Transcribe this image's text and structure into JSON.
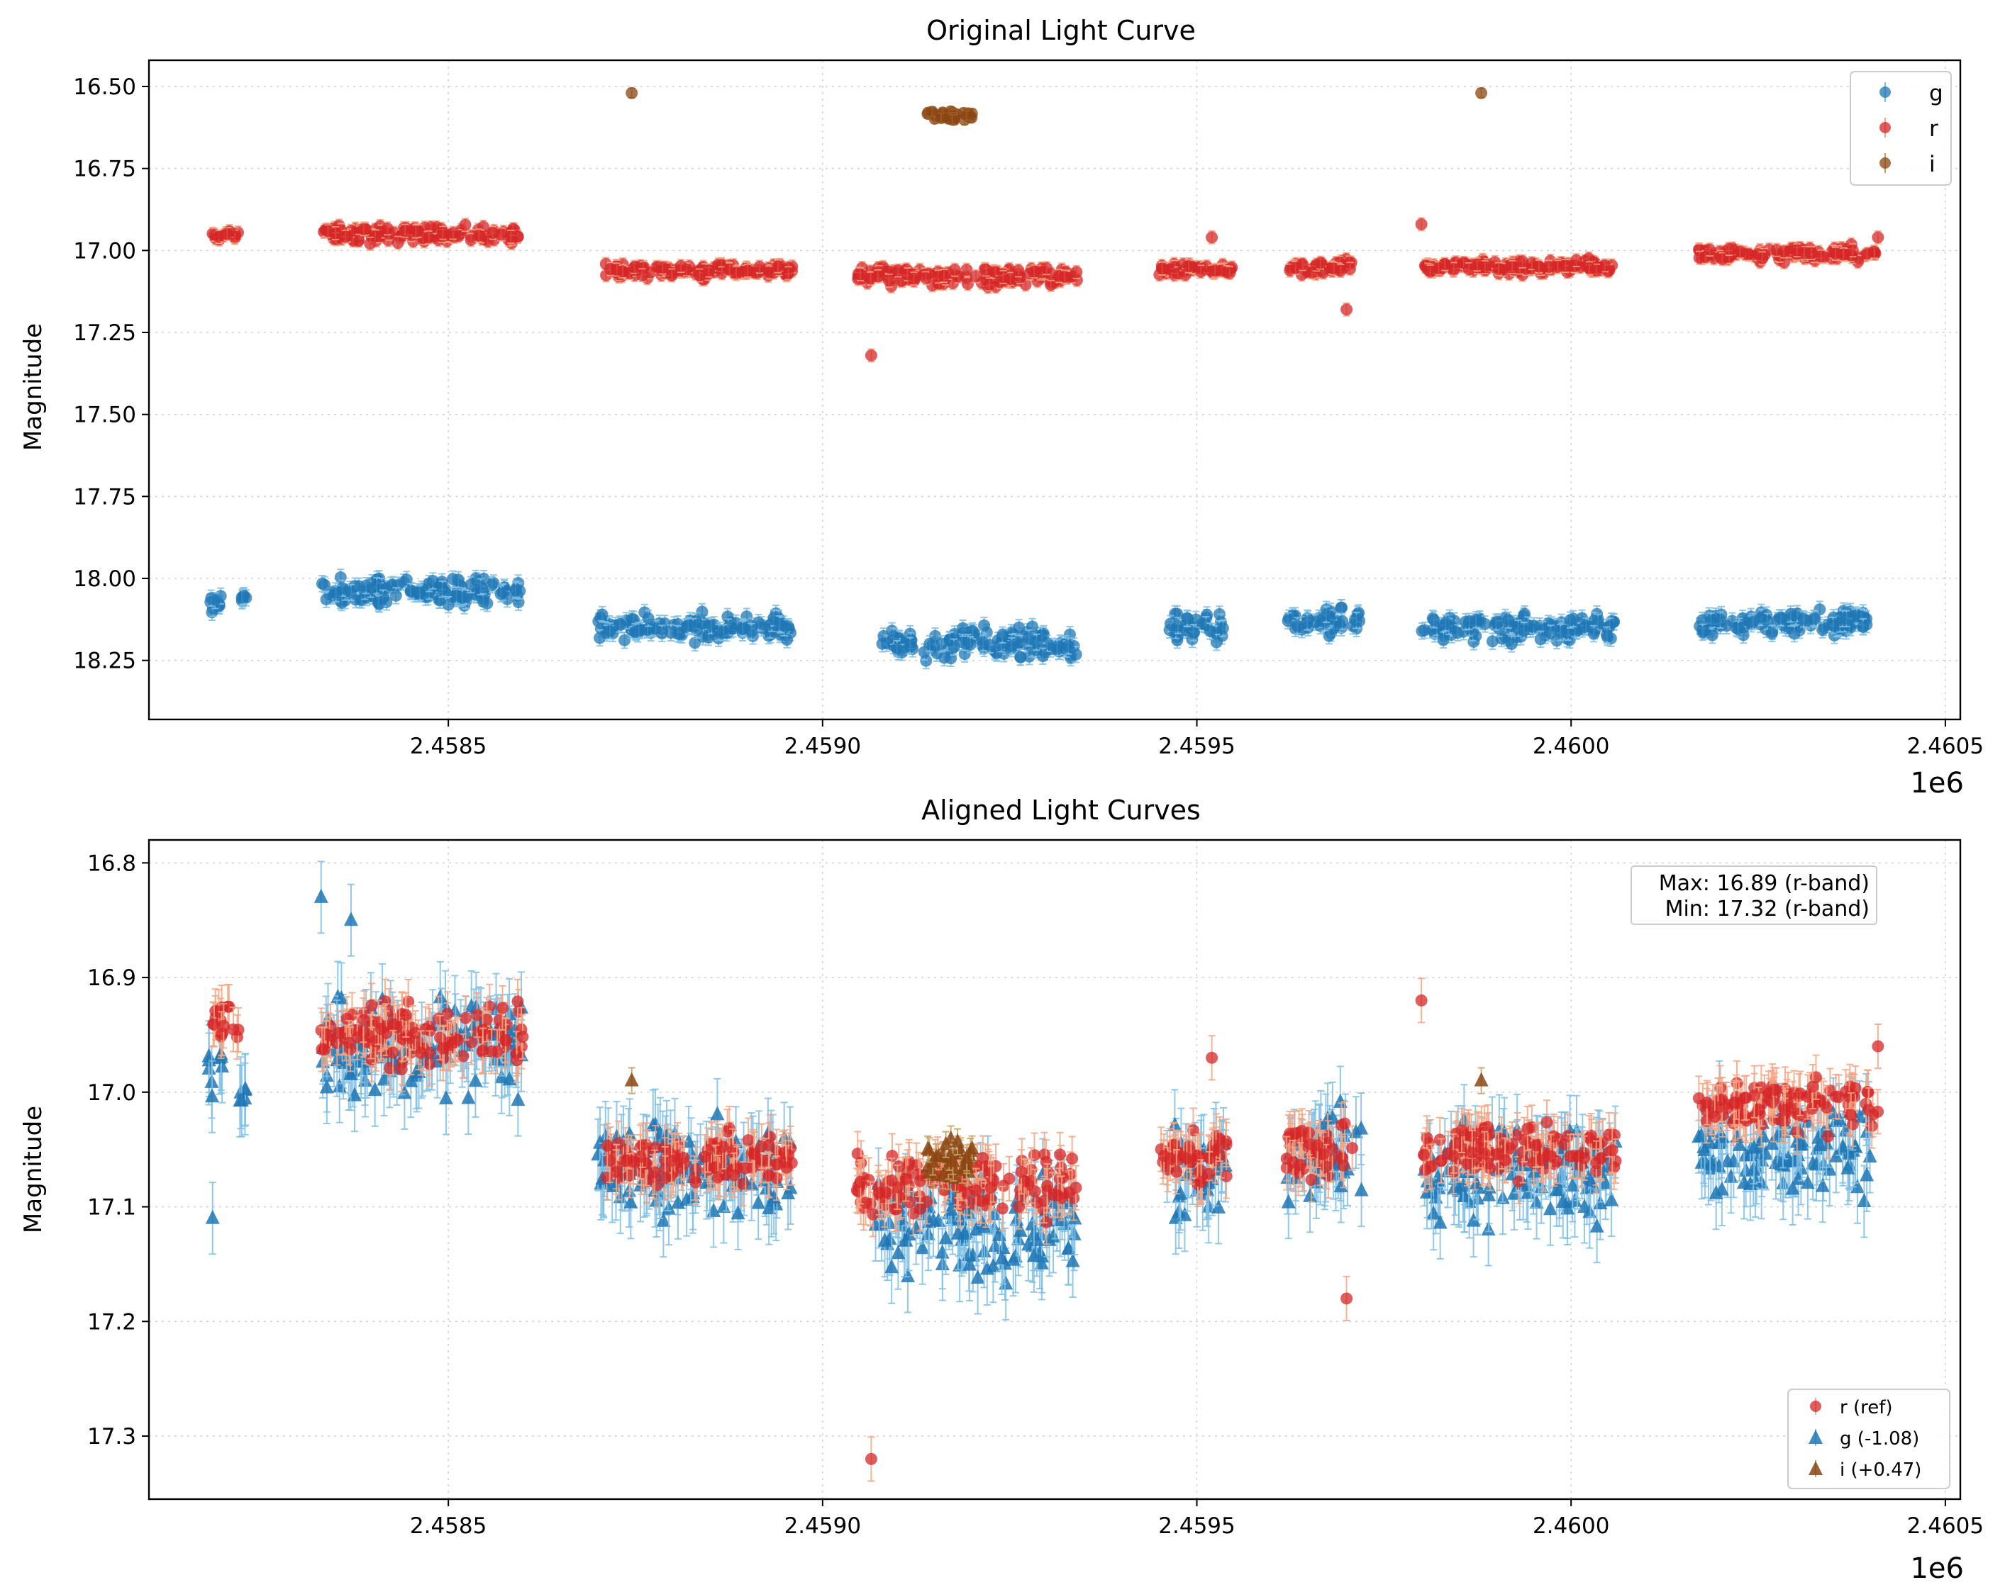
{
  "chart_data": [
    {
      "type": "scatter",
      "title": "Original Light Curve",
      "xlabel": "",
      "ylabel": "Magnitude",
      "x_offset_label": "1e6",
      "xlim": [
        2458100,
        2460520
      ],
      "ylim": [
        18.43,
        16.42
      ],
      "y_inverted": true,
      "x_ticks": [
        2458500,
        2459000,
        2459500,
        2460000,
        2460500
      ],
      "x_tick_labels": [
        "2.4585",
        "2.4590",
        "2.4595",
        "2.4600",
        "2.4605"
      ],
      "y_ticks": [
        16.5,
        16.75,
        17.0,
        17.25,
        17.5,
        17.75,
        18.0,
        18.25
      ],
      "y_tick_labels": [
        "16.50",
        "16.75",
        "17.00",
        "17.25",
        "17.50",
        "17.75",
        "18.00",
        "18.25"
      ],
      "grid": true,
      "legend_position": "top-right",
      "series": [
        {
          "name": "g",
          "color": "#1f77b4",
          "ecolor": "#7fbfe6",
          "marker": "circle",
          "err": 0.02,
          "segments": [
            [
              2458180,
              2458200,
              18.07,
              0.06
            ],
            [
              2458220,
              2458230,
              18.06,
              0.03
            ],
            [
              2458330,
              2458600,
              18.04,
              0.07
            ],
            [
              2458700,
              2458960,
              18.15,
              0.07
            ],
            [
              2459070,
              2459340,
              18.2,
              0.08
            ],
            [
              2459460,
              2459540,
              18.15,
              0.07
            ],
            [
              2459620,
              2459720,
              18.13,
              0.07
            ],
            [
              2459800,
              2460060,
              18.15,
              0.07
            ],
            [
              2460170,
              2460400,
              18.13,
              0.07
            ]
          ]
        },
        {
          "name": "r",
          "color": "#d62728",
          "ecolor": "#f4a582",
          "marker": "circle",
          "err": 0.015,
          "segments": [
            [
              2458185,
              2458220,
              16.95,
              0.03
            ],
            [
              2458330,
              2458600,
              16.95,
              0.05
            ],
            [
              2458710,
              2458960,
              17.06,
              0.04
            ],
            [
              2459045,
              2459340,
              17.08,
              0.05
            ],
            [
              2459450,
              2459550,
              17.06,
              0.04
            ],
            [
              2459620,
              2459710,
              17.05,
              0.04
            ],
            [
              2459800,
              2460060,
              17.05,
              0.04
            ],
            [
              2460170,
              2460410,
              17.01,
              0.04
            ]
          ],
          "outliers": [
            [
              2459065,
              17.32
            ],
            [
              2459700,
              17.18
            ],
            [
              2459800,
              16.92
            ],
            [
              2459520,
              16.96
            ],
            [
              2460410,
              16.96
            ]
          ]
        },
        {
          "name": "i",
          "color": "#8b4513",
          "ecolor": "#c8a060",
          "marker": "circle",
          "err": 0.01,
          "points": [
            [
              2458745,
              16.52
            ],
            [
              2459880,
              16.52
            ]
          ],
          "cluster": [
            2459140,
            2459200,
            16.59,
            0.03
          ]
        }
      ]
    },
    {
      "type": "scatter",
      "title": "Aligned Light Curves",
      "xlabel": "",
      "ylabel": "Magnitude",
      "x_offset_label": "1e6",
      "xlim": [
        2458100,
        2460520
      ],
      "ylim": [
        17.355,
        16.78
      ],
      "y_inverted": true,
      "x_ticks": [
        2458500,
        2459000,
        2459500,
        2460000,
        2460500
      ],
      "x_tick_labels": [
        "2.4585",
        "2.4590",
        "2.4595",
        "2.4600",
        "2.4605"
      ],
      "y_ticks": [
        16.8,
        16.9,
        17.0,
        17.1,
        17.2,
        17.3
      ],
      "y_tick_labels": [
        "16.8",
        "16.9",
        "17.0",
        "17.1",
        "17.2",
        "17.3"
      ],
      "grid": true,
      "legend_position": "bottom-right",
      "annotation": {
        "line1": "Max: 16.89 (r-band)",
        "line2": "Min: 17.32 (r-band)"
      },
      "series": [
        {
          "name": "r (ref)",
          "color": "#d62728",
          "ecolor": "#f4a582",
          "marker": "circle",
          "err": 0.018,
          "segments": [
            [
              2458185,
              2458220,
              16.94,
              0.03
            ],
            [
              2458330,
              2458600,
              16.95,
              0.05
            ],
            [
              2458710,
              2458960,
              17.06,
              0.04
            ],
            [
              2459045,
              2459340,
              17.08,
              0.05
            ],
            [
              2459450,
              2459550,
              17.06,
              0.04
            ],
            [
              2459620,
              2459710,
              17.05,
              0.04
            ],
            [
              2459800,
              2460060,
              17.05,
              0.04
            ],
            [
              2460170,
              2460410,
              17.01,
              0.04
            ]
          ],
          "outliers": [
            [
              2459065,
              17.32
            ],
            [
              2459700,
              17.18
            ],
            [
              2459800,
              16.92
            ],
            [
              2459520,
              16.97
            ],
            [
              2460410,
              16.96
            ]
          ]
        },
        {
          "name": "g (-1.08)",
          "color": "#1f77b4",
          "ecolor": "#7fbfe6",
          "marker": "triangle",
          "err": 0.03,
          "segments": [
            [
              2458180,
              2458200,
              16.99,
              0.06
            ],
            [
              2458220,
              2458230,
              17.0,
              0.03
            ],
            [
              2458330,
              2458600,
              16.96,
              0.07
            ],
            [
              2458700,
              2458960,
              17.07,
              0.07
            ],
            [
              2459070,
              2459340,
              17.12,
              0.08
            ],
            [
              2459460,
              2459540,
              17.07,
              0.07
            ],
            [
              2459620,
              2459720,
              17.05,
              0.07
            ],
            [
              2459800,
              2460060,
              17.07,
              0.07
            ],
            [
              2460170,
              2460400,
              17.05,
              0.07
            ]
          ],
          "outliers": [
            [
              2458185,
              17.11
            ],
            [
              2458330,
              16.83
            ],
            [
              2458370,
              16.85
            ]
          ]
        },
        {
          "name": "i (+0.47)",
          "color": "#8b4513",
          "ecolor": "#c8a060",
          "marker": "triangle",
          "err": 0.01,
          "points": [
            [
              2458745,
              16.99
            ],
            [
              2459880,
              16.99
            ]
          ],
          "cluster": [
            2459140,
            2459200,
            17.06,
            0.03
          ]
        }
      ]
    }
  ]
}
